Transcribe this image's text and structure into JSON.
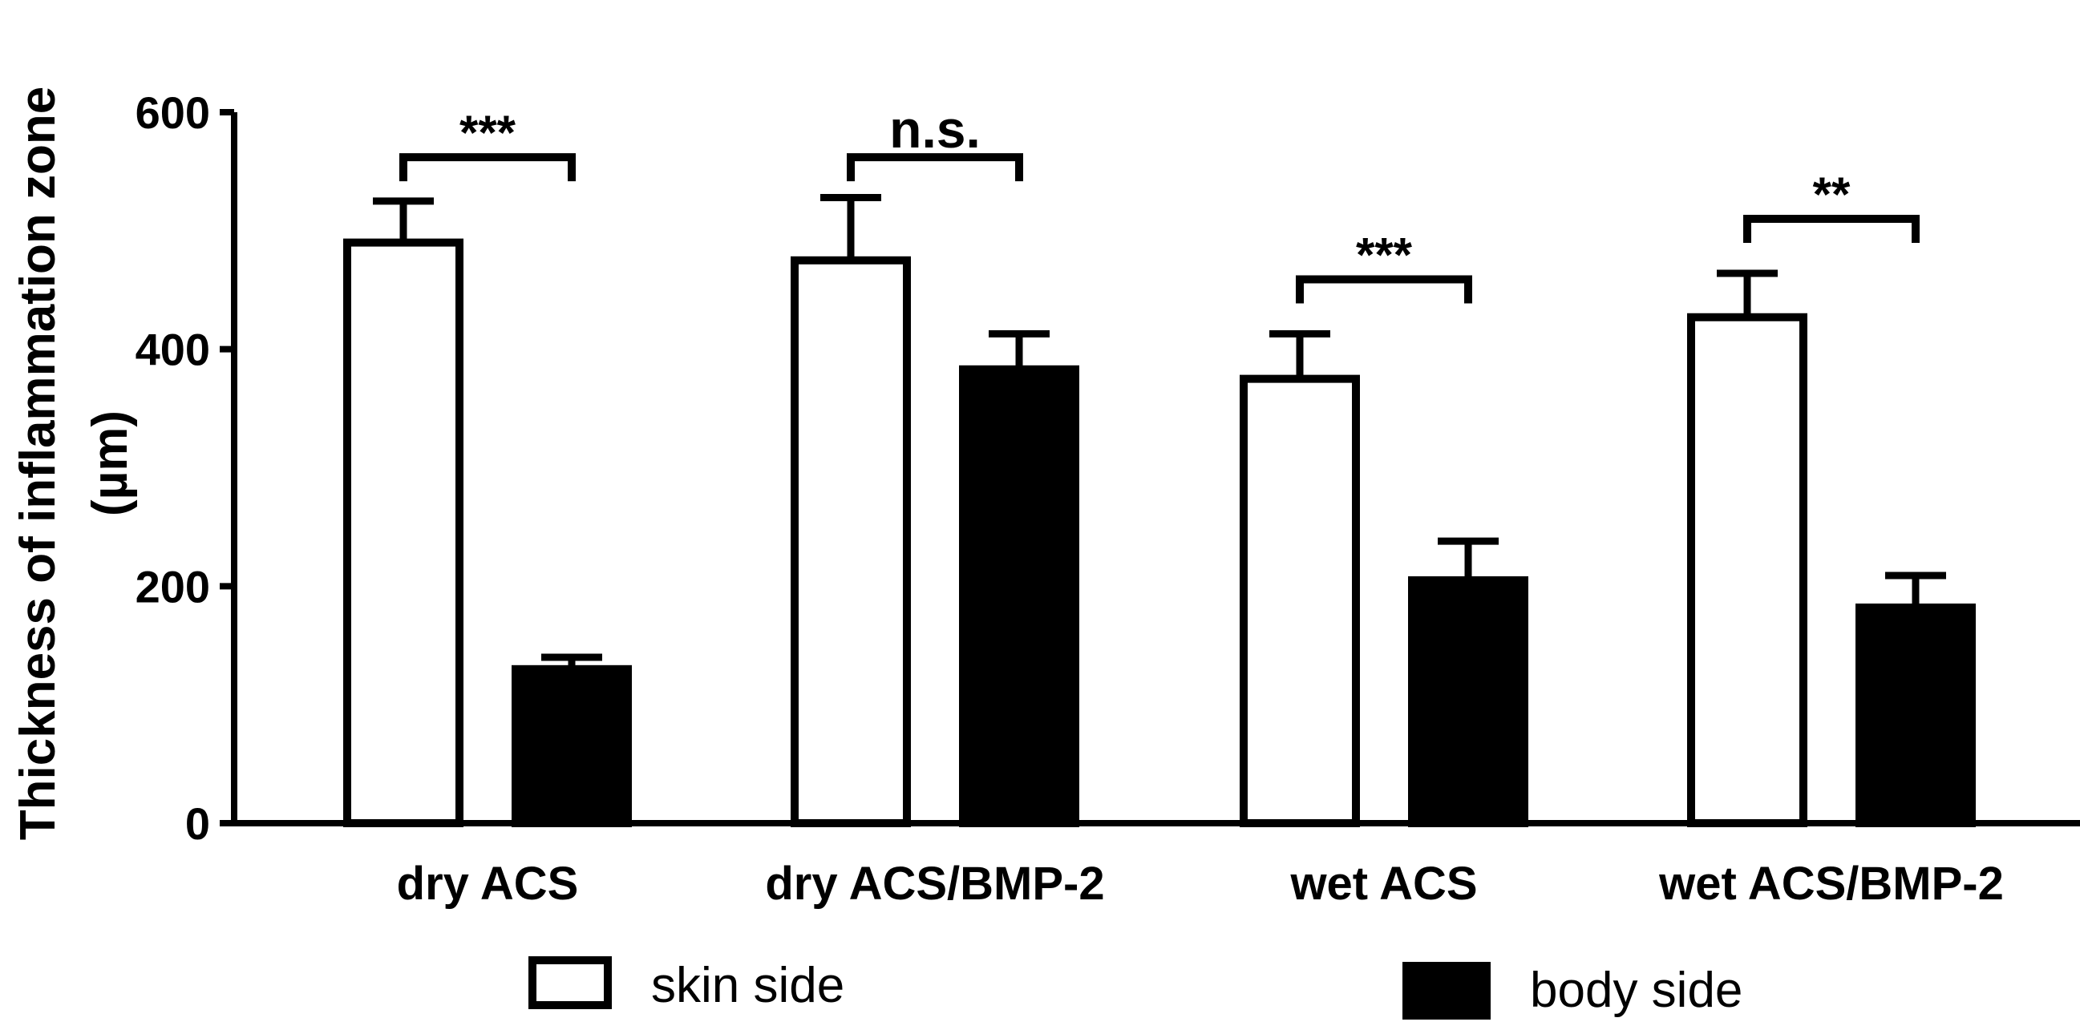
{
  "chart_data": {
    "type": "bar",
    "ylabel_line1": "Thickness  of  inflammation zone",
    "ylabel_line2": "(µm)",
    "ylim": [
      0,
      600
    ],
    "yticks": [
      0,
      200,
      400,
      600
    ],
    "grid": false,
    "legend_position": "bottom",
    "categories": [
      "dry ACS",
      "dry ACS/BMP-2",
      "wet ACS",
      "wet ACS/BMP-2"
    ],
    "series": [
      {
        "name": "skin side",
        "fill": "#ffffff",
        "values": [
          490,
          475,
          375,
          427
        ],
        "errors": [
          35,
          53,
          38,
          37
        ]
      },
      {
        "name": "body side",
        "fill": "#000000",
        "values": [
          130,
          383,
          205,
          182
        ],
        "errors": [
          10,
          30,
          33,
          27
        ]
      }
    ],
    "significance": [
      {
        "category": "dry ACS",
        "label": "***",
        "y": 562
      },
      {
        "category": "dry ACS/BMP-2",
        "label": "n.s.",
        "y": 562
      },
      {
        "category": "wet ACS",
        "label": "***",
        "y": 459
      },
      {
        "category": "wet ACS/BMP-2",
        "label": "**",
        "y": 510
      }
    ]
  }
}
